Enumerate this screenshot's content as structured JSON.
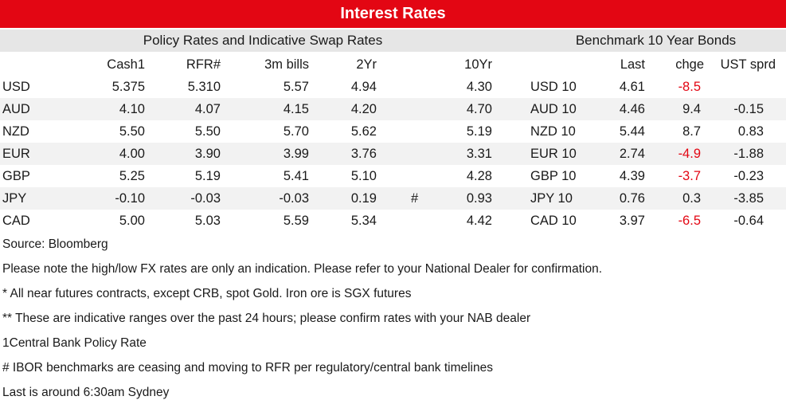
{
  "title": "Interest Rates",
  "subheaders": {
    "left": "Policy Rates and Indicative Swap Rates",
    "right": "Benchmark 10 Year Bonds"
  },
  "columns": {
    "cash": "Cash1",
    "rfr": "RFR#",
    "bills": "3m bills",
    "yr2": "2Yr",
    "yr10": "10Yr",
    "last": "Last",
    "chge": "chge",
    "ust": "UST sprd"
  },
  "rows": [
    {
      "ccy": "USD",
      "cash": "5.375",
      "rfr": "5.310",
      "bills": "5.57",
      "yr2": "4.94",
      "flag": "",
      "yr10": "4.30",
      "bond": "USD 10",
      "last": "4.61",
      "chge": "-8.5",
      "ust": ""
    },
    {
      "ccy": "AUD",
      "cash": "4.10",
      "rfr": "4.07",
      "bills": "4.15",
      "yr2": "4.20",
      "flag": "",
      "yr10": "4.70",
      "bond": "AUD 10",
      "last": "4.46",
      "chge": "9.4",
      "ust": "-0.15"
    },
    {
      "ccy": "NZD",
      "cash": "5.50",
      "rfr": "5.50",
      "bills": "5.70",
      "yr2": "5.62",
      "flag": "",
      "yr10": "5.19",
      "bond": "NZD 10",
      "last": "5.44",
      "chge": "8.7",
      "ust": "0.83"
    },
    {
      "ccy": "EUR",
      "cash": "4.00",
      "rfr": "3.90",
      "bills": "3.99",
      "yr2": "3.76",
      "flag": "",
      "yr10": "3.31",
      "bond": "EUR 10",
      "last": "2.74",
      "chge": "-4.9",
      "ust": "-1.88"
    },
    {
      "ccy": "GBP",
      "cash": "5.25",
      "rfr": "5.19",
      "bills": "5.41",
      "yr2": "5.10",
      "flag": "",
      "yr10": "4.28",
      "bond": "GBP 10",
      "last": "4.39",
      "chge": "-3.7",
      "ust": "-0.23"
    },
    {
      "ccy": "JPY",
      "cash": "-0.10",
      "rfr": "-0.03",
      "bills": "-0.03",
      "yr2": "0.19",
      "flag": "#",
      "yr10": "0.93",
      "bond": "JPY 10",
      "last": "0.76",
      "chge": "0.3",
      "ust": "-3.85"
    },
    {
      "ccy": "CAD",
      "cash": "5.00",
      "rfr": "5.03",
      "bills": "5.59",
      "yr2": "5.34",
      "flag": "",
      "yr10": "4.42",
      "bond": "CAD 10",
      "last": "3.97",
      "chge": "-6.5",
      "ust": "-0.64"
    }
  ],
  "notes": [
    "Source: Bloomberg",
    "Please note the high/low FX rates are only an indication. Please refer to your National Dealer for confirmation.",
    "* All near futures contracts, except CRB, spot Gold.  Iron ore is SGX futures",
    "** These are indicative ranges over the past 24 hours; please confirm rates with your NAB dealer",
    "1Central Bank Policy Rate",
    "# IBOR benchmarks are ceasing and moving to RFR per regulatory/central bank timelines",
    "Last is around 6:30am Sydney"
  ],
  "colors": {
    "accent": "#e30613",
    "negative": "#e30613"
  }
}
